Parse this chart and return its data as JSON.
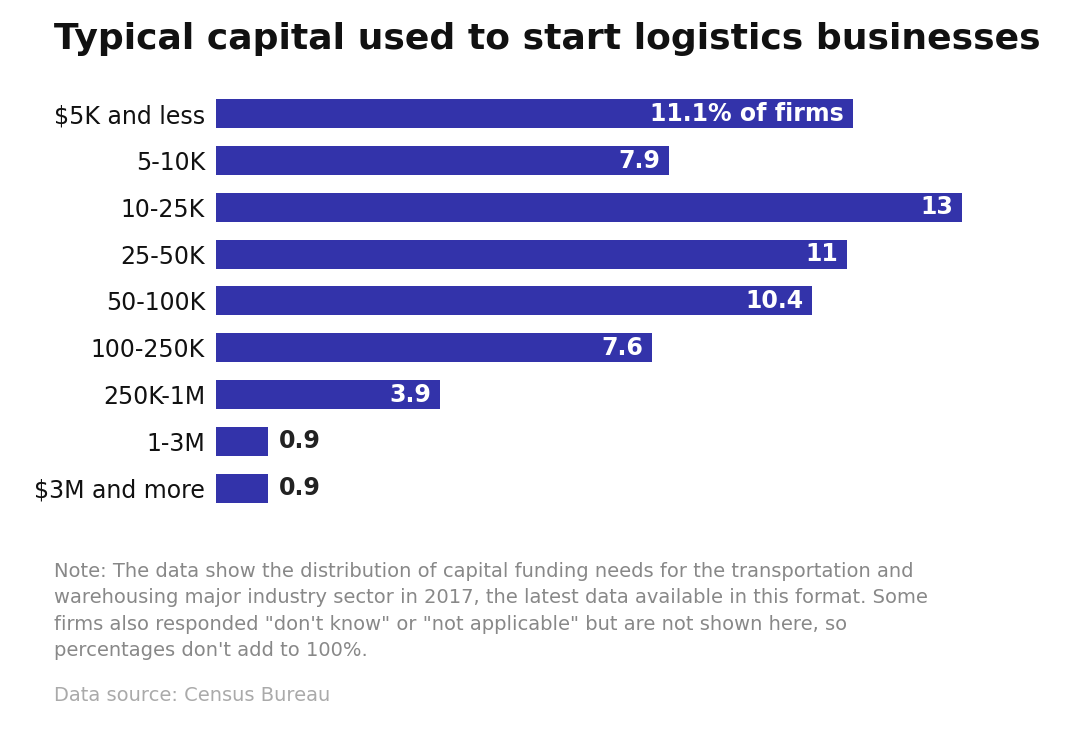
{
  "title": "Typical capital used to start logistics businesses",
  "categories": [
    "$5K and less",
    "5-10K",
    "10-25K",
    "25-50K",
    "50-100K",
    "100-250K",
    "250K-1M",
    "1-3M",
    "$3M and more"
  ],
  "values": [
    11.1,
    7.9,
    13.0,
    11.0,
    10.4,
    7.6,
    3.9,
    0.9,
    0.9
  ],
  "bar_color": "#3333aa",
  "label_color_inside": "#ffffff",
  "label_color_outside": "#222222",
  "value_labels": [
    "11.1% of firms",
    "7.9",
    "13",
    "11",
    "10.4",
    "7.6",
    "3.9",
    "0.9",
    "0.9"
  ],
  "outside_threshold": 2.0,
  "xlim": [
    0,
    14.5
  ],
  "title_fontsize": 26,
  "cat_fontsize": 17,
  "bar_label_fontsize": 17,
  "note_text": "Note: The data show the distribution of capital funding needs for the transportation and\nwarehousing major industry sector in 2017, the latest data available in this format. Some\nfirms also responded \"don't know\" or \"not applicable\" but are not shown here, so\npercentages don't add to 100%.",
  "source_text": "Data source: Census Bureau",
  "background_color": "#ffffff",
  "note_fontsize": 14,
  "source_fontsize": 14,
  "bar_height": 0.62
}
